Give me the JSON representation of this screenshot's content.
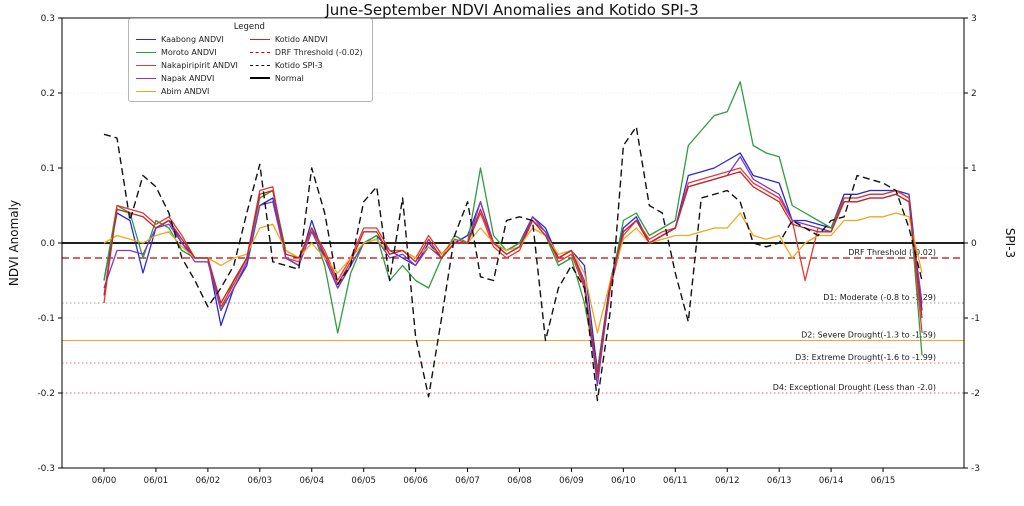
{
  "legend": {
    "title": "Legend",
    "columns": [
      [
        {
          "label": "Kaabong ANDVI",
          "color": "#2a2ad8",
          "dash": "solid",
          "width": 1.5
        },
        {
          "label": "Moroto ANDVI",
          "color": "#2e9e3e",
          "dash": "solid",
          "width": 1.5
        },
        {
          "label": "Nakapiripirit ANDVI",
          "color": "#e53935",
          "dash": "solid",
          "width": 1.5
        },
        {
          "label": "Napak ANDVI",
          "color": "#7d3cc8",
          "dash": "solid",
          "width": 1.5
        },
        {
          "label": "Abim ANDVI",
          "color": "#f2a71b",
          "dash": "solid",
          "width": 1.5
        }
      ],
      [
        {
          "label": "Kotido ANDVI",
          "color": "#c62828",
          "dash": "solid",
          "width": 1.5
        },
        {
          "label": "DRF Threshold (-0.02)",
          "color": "#cc0000",
          "dash": "dashed",
          "width": 1.2
        },
        {
          "label": "Kotido SPI-3",
          "color": "#111111",
          "dash": "dashed",
          "width": 1.5
        },
        {
          "label": "Normal",
          "color": "#000000",
          "dash": "solid",
          "width": 2.2
        }
      ]
    ]
  },
  "chart_data": {
    "type": "line",
    "title": "June-September NDVI Anomalies and Kotido SPI-3",
    "xlabel": "",
    "ylabel_left": "NDVI Anomaly",
    "ylabel_right": "SPI-3",
    "ylim_left": [
      -0.3,
      0.3
    ],
    "ylim_right": [
      -3,
      3
    ],
    "left_tick_values": [
      0.3,
      0.2,
      0.1,
      0.0,
      -0.1,
      -0.2,
      -0.3
    ],
    "left_tick_labels": [
      "0.3",
      "0.2",
      "0.1",
      "0.0",
      "-0.1",
      "-0.2",
      "-0.3"
    ],
    "right_tick_labels": [
      "3",
      "2",
      "1",
      "0",
      "-1",
      "-2",
      "-3"
    ],
    "x_tick_labels": [
      "06/00",
      "06/01",
      "06/02",
      "06/03",
      "06/04",
      "06/05",
      "06/06",
      "06/07",
      "06/08",
      "06/09",
      "06/10",
      "06/11",
      "06/12",
      "06/13",
      "06/14",
      "06/15"
    ],
    "points_per_year": 4,
    "n_points": 64,
    "series": [
      {
        "name": "Kaabong ANDVI",
        "axis": "left",
        "color": "#2a2ad8",
        "dash": "solid",
        "width": 1.3,
        "values": [
          -0.05,
          0.04,
          0.03,
          -0.04,
          0.02,
          0.03,
          0.0,
          -0.02,
          -0.02,
          -0.11,
          -0.06,
          -0.03,
          0.05,
          0.06,
          -0.02,
          -0.03,
          0.03,
          -0.02,
          -0.06,
          -0.03,
          0.0,
          0.01,
          -0.01,
          -0.02,
          -0.03,
          0.0,
          -0.02,
          0.0,
          0.01,
          0.055,
          0.0,
          -0.01,
          0.0,
          0.035,
          0.02,
          -0.02,
          -0.01,
          -0.03,
          -0.17,
          -0.05,
          0.02,
          0.035,
          0.0,
          0.01,
          0.02,
          0.09,
          0.095,
          0.1,
          0.11,
          0.12,
          0.09,
          0.085,
          0.08,
          0.03,
          0.03,
          0.025,
          0.02,
          0.065,
          0.065,
          0.07,
          0.07,
          0.07,
          0.065,
          -0.09
        ]
      },
      {
        "name": "Moroto ANDVI",
        "axis": "left",
        "color": "#2e9e3e",
        "dash": "solid",
        "width": 1.3,
        "values": [
          -0.05,
          0.05,
          0.04,
          -0.02,
          0.03,
          0.02,
          -0.01,
          -0.02,
          -0.02,
          -0.09,
          -0.05,
          -0.02,
          0.06,
          0.07,
          -0.01,
          -0.02,
          0.02,
          -0.03,
          -0.12,
          -0.04,
          0.0,
          0.01,
          -0.05,
          -0.03,
          -0.05,
          -0.06,
          -0.02,
          0.01,
          0.0,
          0.1,
          0.01,
          -0.01,
          0.0,
          0.03,
          0.01,
          -0.03,
          -0.02,
          -0.08,
          -0.17,
          -0.06,
          0.03,
          0.04,
          0.01,
          0.02,
          0.03,
          0.13,
          0.15,
          0.17,
          0.175,
          0.215,
          0.13,
          0.12,
          0.115,
          0.05,
          0.04,
          0.03,
          0.02,
          0.06,
          0.06,
          0.065,
          0.065,
          0.07,
          0.06,
          -0.15
        ]
      },
      {
        "name": "Nakapiripirit ANDVI",
        "axis": "left",
        "color": "#e53935",
        "dash": "solid",
        "width": 1.3,
        "values": [
          -0.08,
          0.05,
          0.045,
          0.04,
          0.025,
          0.035,
          0.01,
          -0.02,
          -0.02,
          -0.085,
          -0.055,
          -0.02,
          0.07,
          0.075,
          -0.02,
          -0.025,
          0.02,
          -0.01,
          -0.05,
          -0.02,
          0.02,
          0.02,
          -0.01,
          -0.01,
          -0.02,
          0.01,
          -0.015,
          0.005,
          0.0,
          0.04,
          -0.005,
          -0.02,
          -0.01,
          0.03,
          0.015,
          -0.025,
          -0.015,
          -0.06,
          -0.18,
          -0.06,
          0.01,
          0.03,
          0.005,
          0.015,
          0.02,
          0.08,
          0.085,
          0.09,
          0.095,
          0.1,
          0.08,
          0.07,
          0.06,
          0.03,
          -0.05,
          0.02,
          0.015,
          0.06,
          0.06,
          0.065,
          0.065,
          0.07,
          0.06,
          -0.12
        ]
      },
      {
        "name": "Napak ANDVI",
        "axis": "left",
        "color": "#7d3cc8",
        "dash": "solid",
        "width": 1.3,
        "values": [
          -0.06,
          -0.01,
          -0.01,
          -0.015,
          0.02,
          0.025,
          0.0,
          -0.025,
          -0.025,
          -0.09,
          -0.06,
          -0.025,
          0.05,
          0.055,
          -0.02,
          -0.03,
          0.015,
          -0.02,
          -0.06,
          -0.03,
          0.0,
          0.005,
          -0.02,
          -0.015,
          -0.03,
          -0.005,
          -0.02,
          0.0,
          0.0,
          0.055,
          0.0,
          -0.015,
          -0.005,
          0.035,
          0.015,
          -0.02,
          -0.01,
          -0.05,
          -0.19,
          -0.055,
          0.015,
          0.03,
          0.0,
          0.01,
          0.02,
          0.075,
          0.08,
          0.085,
          0.09,
          0.115,
          0.085,
          0.075,
          0.065,
          0.03,
          0.025,
          0.02,
          0.015,
          0.055,
          0.055,
          0.06,
          0.06,
          0.065,
          0.055,
          -0.08
        ]
      },
      {
        "name": "Abim ANDVI",
        "axis": "left",
        "color": "#f2a71b",
        "dash": "solid",
        "width": 1.3,
        "values": [
          0.0,
          0.01,
          0.005,
          0.0,
          0.01,
          0.015,
          -0.005,
          -0.02,
          -0.02,
          -0.03,
          -0.02,
          -0.015,
          0.02,
          0.025,
          -0.01,
          -0.02,
          0.0,
          -0.02,
          -0.04,
          -0.02,
          0.0,
          0.005,
          -0.015,
          -0.01,
          -0.02,
          -0.005,
          -0.015,
          0.0,
          0.0,
          0.02,
          0.0,
          -0.01,
          -0.005,
          0.02,
          0.01,
          -0.015,
          -0.01,
          -0.04,
          -0.12,
          -0.05,
          0.005,
          0.02,
          0.0,
          0.005,
          0.01,
          0.01,
          0.015,
          0.02,
          0.02,
          0.04,
          0.01,
          0.005,
          0.01,
          -0.02,
          0.0,
          0.01,
          0.01,
          0.03,
          0.03,
          0.035,
          0.035,
          0.04,
          0.035,
          -0.04
        ]
      },
      {
        "name": "Kotido ANDVI",
        "axis": "left",
        "color": "#c62828",
        "dash": "solid",
        "width": 1.3,
        "values": [
          -0.07,
          0.045,
          0.04,
          0.035,
          0.02,
          0.03,
          0.005,
          -0.02,
          -0.02,
          -0.08,
          -0.05,
          -0.02,
          0.065,
          0.07,
          -0.015,
          -0.02,
          0.02,
          -0.015,
          -0.055,
          -0.025,
          0.015,
          0.015,
          -0.015,
          -0.01,
          -0.025,
          0.005,
          -0.02,
          0.0,
          0.0,
          0.045,
          0.0,
          -0.015,
          -0.005,
          0.03,
          0.01,
          -0.02,
          -0.01,
          -0.055,
          -0.175,
          -0.055,
          0.015,
          0.03,
          0.0,
          0.01,
          0.02,
          0.075,
          0.08,
          0.085,
          0.09,
          0.095,
          0.075,
          0.065,
          0.055,
          0.025,
          0.02,
          0.015,
          0.015,
          0.055,
          0.055,
          0.06,
          0.06,
          0.065,
          0.055,
          -0.1
        ]
      },
      {
        "name": "Kotido SPI-3",
        "axis": "right",
        "color": "#111111",
        "dash": "dashed",
        "width": 1.4,
        "values": [
          1.45,
          1.4,
          0.3,
          0.9,
          0.75,
          0.4,
          -0.2,
          -0.5,
          -0.85,
          -0.6,
          -0.3,
          0.4,
          1.05,
          -0.25,
          -0.3,
          -0.35,
          1.0,
          0.4,
          -0.55,
          -0.3,
          0.55,
          0.75,
          -0.5,
          0.6,
          -1.25,
          -2.05,
          -1.0,
          0.1,
          0.55,
          -0.45,
          -0.5,
          0.3,
          0.35,
          0.3,
          -1.3,
          -0.6,
          -0.3,
          -0.6,
          -2.1,
          -0.9,
          1.3,
          1.55,
          0.5,
          0.4,
          -0.4,
          -1.05,
          0.6,
          0.65,
          0.7,
          0.55,
          0.0,
          -0.05,
          0.0,
          0.3,
          0.2,
          0.1,
          0.3,
          0.35,
          0.9,
          0.85,
          0.8,
          0.7,
          0.2,
          -0.5
        ]
      }
    ],
    "reference_lines": [
      {
        "name": "normal",
        "label": "",
        "value": 0.0,
        "color": "#000000",
        "dash": "solid",
        "width": 1.8,
        "label_color": "#000000"
      },
      {
        "name": "drf-threshold",
        "label": "DRF Threshold (-0.02)",
        "value": -0.02,
        "color": "#cc0000",
        "dash": "dashed",
        "width": 1.2,
        "label_color": "#cc0000"
      },
      {
        "name": "d1-moderate",
        "label": "D1: Moderate (-0.8 to -1.29)",
        "value": -0.08,
        "color": "#9a9a9a",
        "dash": "dotted",
        "width": 1,
        "label_color": "#222222"
      },
      {
        "name": "d2-severe",
        "label": "D2: Severe Drought(-1.3 to -1.59)",
        "value": -0.13,
        "color": "#f0a830",
        "dash": "solid",
        "width": 1,
        "label_color": "#222222"
      },
      {
        "name": "d3-extreme",
        "label": "D3: Extreme Drought(-1.6 to -1.99)",
        "value": -0.16,
        "color": "#ff7766",
        "dash": "dotted",
        "width": 1,
        "label_color": "#222222"
      },
      {
        "name": "d4-exceptional",
        "label": "D4: Exceptional Drought (Less than -2.0)",
        "value": -0.2,
        "color": "#cc6699",
        "dash": "dotted",
        "width": 1,
        "label_color": "#222222"
      }
    ]
  }
}
